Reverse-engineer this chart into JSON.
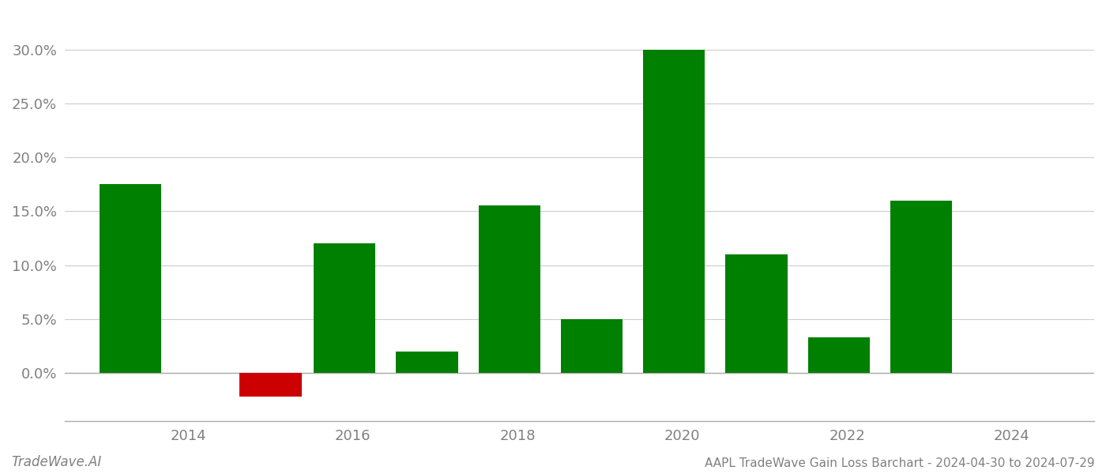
{
  "bar_positions": [
    2013.3,
    2015.0,
    2015.9,
    2016.9,
    2017.9,
    2018.9,
    2019.9,
    2020.9,
    2021.9,
    2022.9
  ],
  "bar_values": [
    0.175,
    -0.022,
    0.12,
    0.02,
    0.155,
    0.05,
    0.3,
    0.11,
    0.033,
    0.16
  ],
  "green_color": "#008000",
  "red_color": "#cc0000",
  "background_color": "#ffffff",
  "grid_color": "#cccccc",
  "text_color": "#808080",
  "footer_left": "TradeWave.AI",
  "footer_right": "AAPL TradeWave Gain Loss Barchart - 2024-04-30 to 2024-07-29",
  "ytick_values": [
    0.0,
    0.05,
    0.1,
    0.15,
    0.2,
    0.25,
    0.3
  ],
  "xtick_positions": [
    2014,
    2016,
    2018,
    2020,
    2022,
    2024
  ],
  "xtick_labels": [
    "2014",
    "2016",
    "2018",
    "2020",
    "2022",
    "2024"
  ],
  "ylim": [
    -0.045,
    0.335
  ],
  "xlim": [
    2012.5,
    2025.0
  ],
  "bar_width": 0.75,
  "figsize": [
    14.0,
    6.0
  ],
  "dpi": 100
}
